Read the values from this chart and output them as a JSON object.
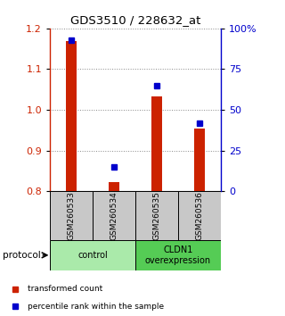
{
  "title": "GDS3510 / 228632_at",
  "samples": [
    "GSM260533",
    "GSM260534",
    "GSM260535",
    "GSM260536"
  ],
  "red_values": [
    1.17,
    0.822,
    1.032,
    0.955
  ],
  "blue_values": [
    93,
    15,
    65,
    42
  ],
  "ylim_left": [
    0.8,
    1.2
  ],
  "ylim_right": [
    0,
    100
  ],
  "yticks_left": [
    0.8,
    0.9,
    1.0,
    1.1,
    1.2
  ],
  "yticks_right": [
    0,
    25,
    50,
    75,
    100
  ],
  "ytick_labels_right": [
    "0",
    "25",
    "50",
    "75",
    "100%"
  ],
  "groups": [
    {
      "label": "control",
      "start": 0,
      "end": 2,
      "color": "#aaeaaa"
    },
    {
      "label": "CLDN1\noverexpression",
      "start": 2,
      "end": 4,
      "color": "#55cc55"
    }
  ],
  "bar_color": "#cc2200",
  "dot_color": "#0000cc",
  "bar_width": 0.25,
  "label_box_color": "#c8c8c8",
  "legend_red_label": "transformed count",
  "legend_blue_label": "percentile rank within the sample",
  "protocol_label": "protocol",
  "left_axis_color": "#cc2200",
  "right_axis_color": "#0000cc",
  "grid_color": "#888888"
}
